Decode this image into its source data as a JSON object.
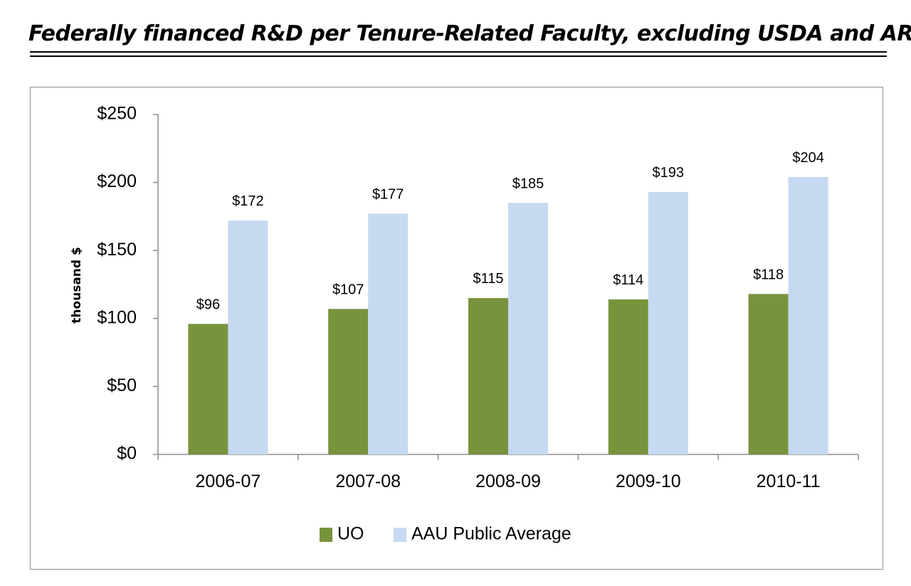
{
  "title": "Federally financed R&D per Tenure-Related Faculty, excluding USDA and ARRA",
  "chart_data": {
    "type": "bar",
    "categories": [
      "2006-07",
      "2007-08",
      "2008-09",
      "2009-10",
      "2010-11"
    ],
    "series": [
      {
        "name": "UO",
        "values": [
          96,
          107,
          115,
          114,
          118
        ],
        "labels": [
          "$96",
          "$107",
          "$115",
          "$114",
          "$118"
        ],
        "color": "#77933c"
      },
      {
        "name": "AAU Public Average",
        "values": [
          172,
          177,
          185,
          193,
          204
        ],
        "labels": [
          "$172",
          "$177",
          "$185",
          "$193",
          "$204"
        ],
        "color": "#c6d9f1"
      }
    ],
    "ylabel": "thousand $",
    "xlabel": "",
    "ylim": [
      0,
      250
    ],
    "yticks": [
      0,
      50,
      100,
      150,
      200,
      250
    ],
    "ytick_labels": [
      "$0",
      "$50",
      "$100",
      "$150",
      "$200",
      "$250"
    ],
    "grid": false,
    "legend": "bottom"
  }
}
